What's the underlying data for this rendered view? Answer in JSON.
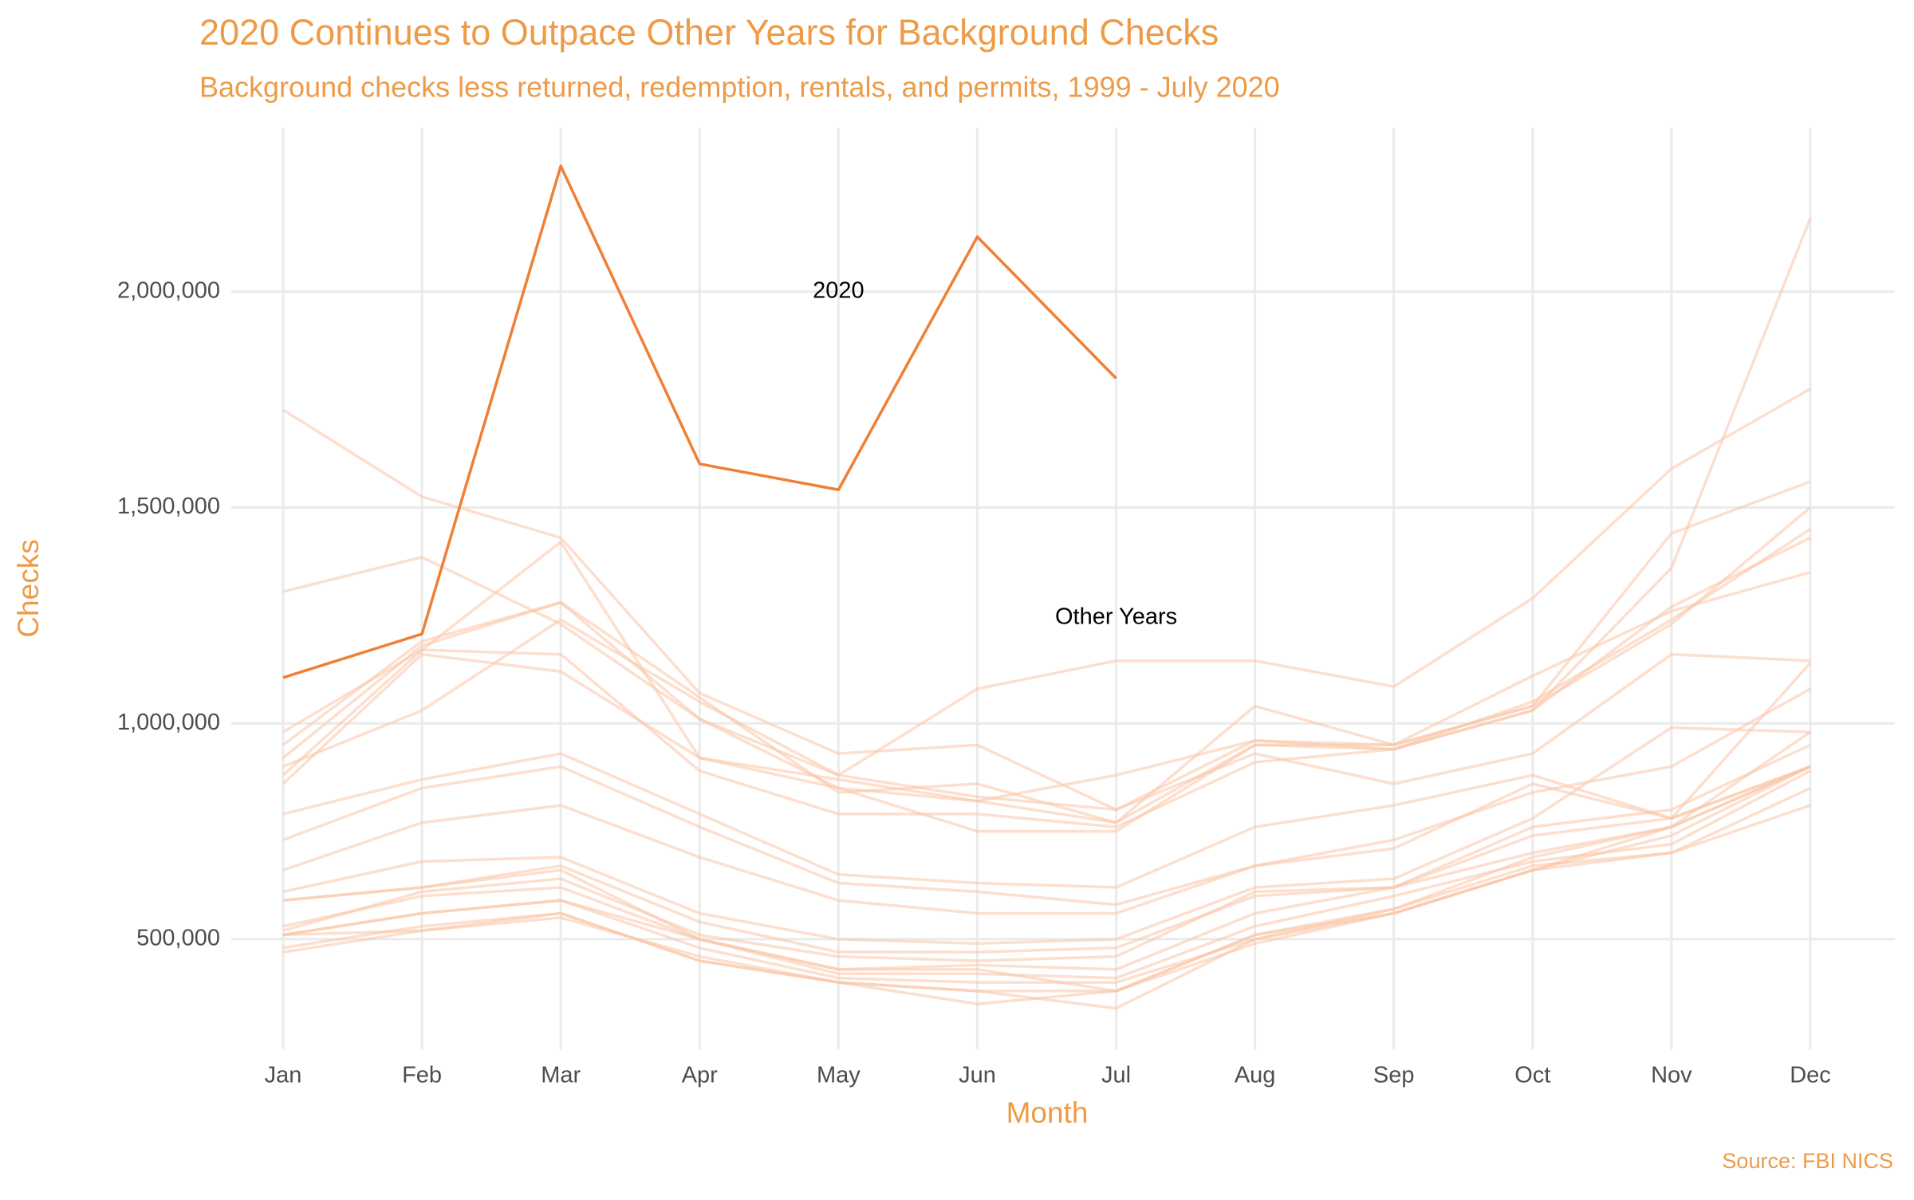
{
  "chart_data": {
    "type": "line",
    "title": "2020 Continues to Outpace Other Years for Background Checks",
    "subtitle": "Background checks less returned, redemption, rentals, and permits, 1999 - July 2020",
    "x_label": "Month",
    "y_label": "Checks",
    "source": "Source: FBI NICS",
    "categories": [
      "Jan",
      "Feb",
      "Mar",
      "Apr",
      "May",
      "Jun",
      "Jul",
      "Aug",
      "Sep",
      "Oct",
      "Nov",
      "Dec"
    ],
    "ylim": [
      245000,
      2380000
    ],
    "yticks": [
      {
        "value": 500000,
        "label": "500,000"
      },
      {
        "value": 1000000,
        "label": "1,000,000"
      },
      {
        "value": 1500000,
        "label": "1,500,000"
      },
      {
        "value": 2000000,
        "label": "2,000,000"
      }
    ],
    "grid": true,
    "series": [
      {
        "name": "2020",
        "color": "#f07f35",
        "values": [
          1106000,
          1207000,
          2291000,
          1601000,
          1541000,
          2127000,
          1799000,
          null,
          null,
          null,
          null,
          null
        ]
      },
      {
        "color": "#f9c4a6",
        "values": [
          590000,
          620000,
          660000,
          500000,
          430000,
          430000,
          380000,
          510000,
          560000,
          660000,
          760000,
          900000
        ]
      },
      {
        "color": "#f9c4a6",
        "values": [
          470000,
          520000,
          560000,
          450000,
          400000,
          380000,
          340000,
          500000,
          560000,
          660000,
          740000,
          900000
        ]
      },
      {
        "color": "#f9c4a6",
        "values": [
          510000,
          520000,
          550000,
          460000,
          400000,
          350000,
          380000,
          510000,
          570000,
          690000,
          760000,
          980000
        ]
      },
      {
        "color": "#f9c4a6",
        "values": [
          480000,
          530000,
          560000,
          450000,
          400000,
          380000,
          380000,
          490000,
          560000,
          660000,
          700000,
          850000
        ]
      },
      {
        "color": "#f9c4a6",
        "values": [
          510000,
          560000,
          590000,
          480000,
          410000,
          400000,
          400000,
          500000,
          570000,
          670000,
          700000,
          810000
        ]
      },
      {
        "color": "#f9c4a6",
        "values": [
          530000,
          600000,
          620000,
          500000,
          420000,
          420000,
          410000,
          530000,
          600000,
          680000,
          720000,
          890000
        ]
      },
      {
        "color": "#f9c4a6",
        "values": [
          510000,
          560000,
          590000,
          500000,
          430000,
          440000,
          430000,
          560000,
          620000,
          700000,
          760000,
          900000
        ]
      },
      {
        "color": "#f9c4a6",
        "values": [
          520000,
          610000,
          640000,
          510000,
          460000,
          450000,
          460000,
          610000,
          620000,
          740000,
          780000,
          900000
        ]
      },
      {
        "color": "#f9c4a6",
        "values": [
          590000,
          620000,
          670000,
          540000,
          470000,
          470000,
          480000,
          600000,
          620000,
          760000,
          800000,
          950000
        ]
      },
      {
        "color": "#f9c4a6",
        "values": [
          610000,
          680000,
          690000,
          560000,
          500000,
          490000,
          500000,
          620000,
          640000,
          780000,
          990000,
          980000
        ]
      },
      {
        "color": "#f9c4a6",
        "values": [
          660000,
          770000,
          810000,
          690000,
          590000,
          560000,
          560000,
          670000,
          710000,
          860000,
          780000,
          900000
        ]
      },
      {
        "color": "#f9c4a6",
        "values": [
          730000,
          850000,
          900000,
          760000,
          630000,
          610000,
          580000,
          670000,
          730000,
          840000,
          900000,
          1080000
        ]
      },
      {
        "color": "#f9c4a6",
        "values": [
          790000,
          870000,
          930000,
          790000,
          650000,
          630000,
          620000,
          760000,
          810000,
          880000,
          780000,
          1140000
        ]
      },
      {
        "color": "#f9c4a6",
        "values": [
          900000,
          1030000,
          1240000,
          1050000,
          880000,
          830000,
          800000,
          930000,
          860000,
          930000,
          1160000,
          1145000
        ]
      },
      {
        "color": "#f9c4a6",
        "values": [
          1305000,
          1385000,
          1230000,
          1010000,
          880000,
          1080000,
          1145000,
          1145000,
          1085000,
          1290000,
          1590000,
          1775000
        ]
      },
      {
        "color": "#f9c4a6",
        "values": [
          980000,
          1170000,
          1160000,
          890000,
          790000,
          790000,
          760000,
          910000,
          940000,
          1050000,
          1240000,
          1450000
        ]
      },
      {
        "color": "#f9c4a6",
        "values": [
          860000,
          1160000,
          1120000,
          920000,
          850000,
          820000,
          770000,
          950000,
          940000,
          1030000,
          1360000,
          2170000
        ]
      },
      {
        "color": "#f9c4a6",
        "values": [
          1726000,
          1525000,
          1430000,
          1070000,
          930000,
          950000,
          800000,
          960000,
          950000,
          1040000,
          1440000,
          1560000
        ]
      },
      {
        "color": "#f9c4a6",
        "values": [
          920000,
          1180000,
          1280000,
          1010000,
          850000,
          750000,
          750000,
          950000,
          950000,
          1040000,
          1230000,
          1500000
        ]
      },
      {
        "color": "#f9c4a6",
        "values": [
          950000,
          1190000,
          1280000,
          1060000,
          840000,
          860000,
          770000,
          1040000,
          950000,
          1110000,
          1260000,
          1350000
        ]
      },
      {
        "color": "#f9c4a6",
        "values": [
          880000,
          1170000,
          1420000,
          920000,
          870000,
          820000,
          880000,
          960000,
          940000,
          1030000,
          1270000,
          1430000
        ]
      }
    ],
    "annotations": [
      {
        "text": "Other Years"
      }
    ]
  }
}
